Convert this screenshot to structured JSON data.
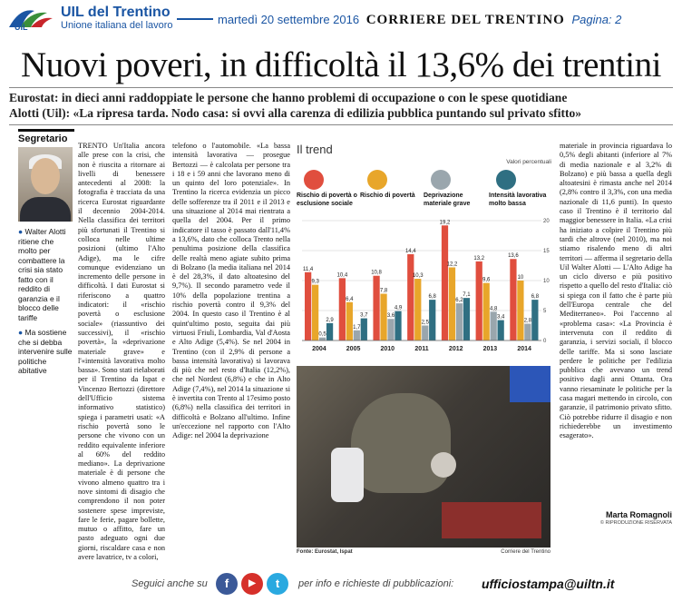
{
  "header": {
    "org": "UIL del Trentino",
    "org_sub": "Unione italiana del lavoro",
    "date": "martedì 20 settembre 2016",
    "paper": "CORRIERE DEL TRENTINO",
    "page": "Pagina: 2",
    "logo_text": "UIL",
    "colors": {
      "blue": "#1a55a3",
      "red": "#c8262b",
      "green": "#3a8f3a"
    }
  },
  "headline": "Nuovi poveri, in difficoltà il 13,6% dei trentini",
  "subhead": [
    "Eurostat: in dieci anni raddoppiate le persone che hanno problemi di occupazione o con le spese quotidiane",
    "Alotti (Uil): «La ripresa tarda. Nodo casa: si ovvi alla carenza di edilizia pubblica puntando sul privato sfitto»"
  ],
  "sidebar": {
    "label": "Segretario",
    "bullets": [
      "Walter Alotti ritiene che molto per combattere la crisi sia stato fatto con il reddito di garanzia e il blocco delle tariffe",
      "Ma sostiene che si debba intervenire sulle politiche abitative"
    ]
  },
  "col1": "TRENTO Un'Italia ancora alle prese con la crisi, che non è riuscita a ritornare ai livelli di benessere antecedenti al 2008: la fotografia è tracciata da una ricerca Eurostat riguardante il decennio 2004-2014. Nella classifica dei territori più sfortunati il Trentino si colloca nelle ultime posizioni (ultimo l'Alto Adige), ma le cifre comunque evidenziano un incremento delle persone in difficoltà. I dati Eurostat si riferiscono a quattro indicatori: il «rischio povertà o esclusione sociale» (riassuntivo dei successivi), il «rischio povertà», la «deprivazione materiale grave» e l'«intensità lavorativa molto bassa». Sono stati rielaborati per il Trentino da Ispat e Vincenzo Bertozzi (direttore dell'Ufficio sistema informativo statistico) spiega i parametri usati: «A rischio povertà sono le persone che vivono con un reddito equivalente inferiore al 60% del reddito mediano». La deprivazione materiale è di persone che vivono almeno quattro tra i nove sintomi di disagio che comprendono il non poter sostenere spese impreviste, fare le ferie, pagare bollette, mutuo o affitto, fare un pasto adeguato ogni due giorni, riscaldare casa e non avere lavatrice, tv a colori,",
  "col2": "telefono o l'automobile. «La bassa intensità lavorativa — prosegue Bertozzi — è calcolata per persone tra i 18 e i 59 anni che lavorano meno di un quinto del loro potenziale». In Trentino la ricerca evidenzia un picco delle sofferenze tra il 2011 e il 2013 e una situazione al 2014 mai rientrata a quella del 2004. Per il primo indicatore il tasso è passato dall'11,4% a 13,6%, dato che colloca Trento nella penultima posizione della classifica delle realtà meno agiate subito prima di Bolzano (la media italiana nel 2014 è del 28,3%, il dato altoatesino del 9,7%). Il secondo parametro vede il 10% della popolazione trentina a rischio povertà contro il 9,3% del 2004. In questo caso il Trentino è al quint'ultimo posto, seguita dai più virtuosi Friuli, Lombardia, Val d'Aosta e Alto Adige (5,4%). Se nel 2004 in Trentino (con il 2,9% di persone a bassa intensità lavorativa) si lavorava di più che nel resto d'Italia (12,2%), che nel Nordest (6,8%) e che in Alto Adige (7,4%), nel 2014 la situazione si è invertita con Trento al 17esimo posto (6,8%) nella classifica dei territori in difficoltà e Bolzano all'ultimo. Infine un'eccezione nel rapporto con l'Alto Adige: nel 2004 la deprivazione",
  "col4": "materiale in provincia riguardava lo 0,5% degli abitanti (inferiore al 7% di media nazionale e al 3,2% di Bolzano) e più bassa a quella degli altoatesini è rimasta anche nel 2014 (2,8% contro il 3,3%, con una media nazionale di 11,6 punti). In questo caso il Trentino è il territorio dal maggior benessere in Italia. «La crisi ha iniziato a colpire il Trentino più tardi che altrove (nel 2010), ma noi stiamo risalendo meno di altri territori — afferma il segretario della Uil Walter Alotti — L'Alto Adige ha un ciclo diverso e più positivo rispetto a quello del resto d'Italia: ciò si spiega con il fatto che è parte più dell'Europa centrale che del Mediterraneo». Poi l'accenno al «problema casa»: «La Provincia è intervenuta con il reddito di garanzia, i servizi sociali, il blocco delle tariffe. Ma si sono lasciate perdere le politiche per l'edilizia pubblica che avevano un trend positivo dagli anni Ottanta. Ora vanno riesaminate le politiche per la casa magari mettendo in circolo, con garanzie, il patrimonio privato sfitto. Ciò potrebbe ridurre il disagio e non richiederebbe un investimento esagerato».",
  "author": "Marta Romagnoli",
  "author_sub": "© RIPRODUZIONE RISERVATA",
  "figure_source": "Fonte: Eurostat, Ispat",
  "figure_credit": "Corriere del Trentino",
  "chart_data": {
    "type": "bar",
    "title": "Il trend",
    "unit_label": "Valori percentuali",
    "categories": [
      "2004",
      "2005",
      "2010",
      "2011",
      "2012",
      "2013",
      "2014"
    ],
    "series": [
      {
        "name": "Rischio di povertà o esclusione sociale",
        "color": "#e04e3e",
        "icon": "people-icon",
        "values": [
          11.4,
          10.4,
          10.8,
          14.4,
          19.2,
          13.2,
          13.6
        ]
      },
      {
        "name": "Rischio di povertà",
        "color": "#e8a62a",
        "icon": "money-icon",
        "values": [
          9.3,
          6.4,
          7.8,
          10.3,
          12.2,
          9.6,
          10
        ]
      },
      {
        "name": "Deprivazione materiale grave",
        "color": "#9aa6ad",
        "icon": "house-icon",
        "values": [
          0.5,
          1.7,
          3.6,
          2.5,
          6.2,
          4.8,
          2.8
        ]
      },
      {
        "name": "Intensità lavorativa molto bassa",
        "color": "#2f6f82",
        "icon": "worker-icon",
        "values": [
          2.9,
          3.7,
          4.9,
          6.8,
          7.1,
          3.4,
          6.8
        ]
      }
    ],
    "yticks": [
      "0",
      "5",
      "10",
      "15",
      "20"
    ],
    "ylim": [
      0,
      20
    ]
  },
  "footer": {
    "follow": "Seguici anche su",
    "social": [
      {
        "icon": "facebook-icon",
        "glyph": "f",
        "color": "#3b5998"
      },
      {
        "icon": "youtube-icon",
        "glyph": "▶",
        "color": "#d6302a"
      },
      {
        "icon": "twitter-icon",
        "glyph": "t",
        "color": "#2aa9e0"
      }
    ],
    "info": "per info e richieste di pubblicazioni:",
    "email": "ufficiostampa@uiltn.it"
  }
}
